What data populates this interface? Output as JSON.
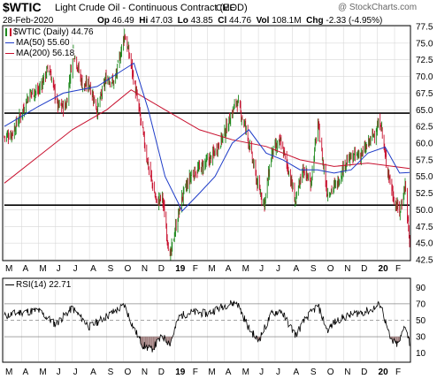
{
  "header": {
    "symbol": "$WTIC",
    "name": "Light Crude Oil - Continuous Contract (EOD)",
    "exchange": "CME",
    "date": "28-Feb-2020",
    "open_label": "Op",
    "open": "46.49",
    "high_label": "Hi",
    "high": "47.03",
    "low_label": "Lo",
    "low": "43.85",
    "close_label": "Cl",
    "close": "44.76",
    "volume_label": "Vol",
    "volume": "108.1M",
    "change_label": "Chg",
    "change": "-2.33 (-4.95%)",
    "watermark": "@ StockCharts.com"
  },
  "legend": {
    "price": "$WTIC (Daily) 44.76",
    "ma50": "MA(50) 55.60",
    "ma200": "MA(200) 56.18",
    "rsi": "RSI(14) 22.71"
  },
  "colors": {
    "up": "#1f8a1f",
    "down": "#c8102e",
    "ma50": "#1e3cc8",
    "ma200": "#c8102e",
    "rsi_line": "#000000",
    "rsi_fill": "#a08080",
    "grid": "#d8d8d8",
    "hline": "#000000"
  },
  "chart_data": [
    {
      "type": "candlestick",
      "x_range": [
        "2018-03-01",
        "2020-02-28"
      ],
      "ylim": [
        42.5,
        77.5
      ],
      "y_ticks": [
        42.5,
        45.0,
        47.5,
        50.0,
        52.5,
        55.0,
        57.5,
        60.0,
        62.5,
        65.0,
        67.5,
        70.0,
        72.5,
        75.0,
        77.5
      ],
      "x_tick_labels": [
        "M",
        "A",
        "M",
        "J",
        "J",
        "A",
        "S",
        "O",
        "N",
        "D",
        "19",
        "F",
        "M",
        "A",
        "M",
        "J",
        "J",
        "A",
        "S",
        "O",
        "N",
        "D",
        "20",
        "F"
      ],
      "grid": true,
      "horizontal_lines": [
        64.5,
        50.7
      ],
      "close_path": [
        [
          "2018-03-01",
          61.0
        ],
        [
          "2018-03-15",
          61.5
        ],
        [
          "2018-04-01",
          64.5
        ],
        [
          "2018-04-15",
          67.5
        ],
        [
          "2018-05-01",
          67.8
        ],
        [
          "2018-05-20",
          71.5
        ],
        [
          "2018-06-05",
          65.5
        ],
        [
          "2018-06-20",
          65.6
        ],
        [
          "2018-07-03",
          74.0
        ],
        [
          "2018-07-20",
          68.5
        ],
        [
          "2018-08-01",
          68.8
        ],
        [
          "2018-08-15",
          65.0
        ],
        [
          "2018-09-01",
          70.0
        ],
        [
          "2018-09-15",
          69.0
        ],
        [
          "2018-10-03",
          76.4
        ],
        [
          "2018-10-15",
          71.8
        ],
        [
          "2018-11-01",
          63.5
        ],
        [
          "2018-11-15",
          56.5
        ],
        [
          "2018-11-30",
          51.0
        ],
        [
          "2018-12-10",
          52.0
        ],
        [
          "2018-12-24",
          42.6
        ],
        [
          "2019-01-01",
          46.5
        ],
        [
          "2019-01-15",
          52.0
        ],
        [
          "2019-02-01",
          55.3
        ],
        [
          "2019-02-20",
          56.5
        ],
        [
          "2019-03-10",
          58.0
        ],
        [
          "2019-04-01",
          61.5
        ],
        [
          "2019-04-23",
          66.4
        ],
        [
          "2019-05-10",
          62.0
        ],
        [
          "2019-05-31",
          53.5
        ],
        [
          "2019-06-12",
          51.0
        ],
        [
          "2019-06-25",
          58.5
        ],
        [
          "2019-07-11",
          60.2
        ],
        [
          "2019-07-25",
          56.0
        ],
        [
          "2019-08-07",
          51.1
        ],
        [
          "2019-08-20",
          56.3
        ],
        [
          "2019-09-03",
          53.9
        ],
        [
          "2019-09-16",
          62.9
        ],
        [
          "2019-09-30",
          54.1
        ],
        [
          "2019-10-03",
          52.5
        ],
        [
          "2019-10-20",
          53.8
        ],
        [
          "2019-11-05",
          57.2
        ],
        [
          "2019-11-20",
          58.0
        ],
        [
          "2019-12-05",
          58.4
        ],
        [
          "2019-12-20",
          60.5
        ],
        [
          "2020-01-07",
          63.3
        ],
        [
          "2020-01-15",
          58.0
        ],
        [
          "2020-01-31",
          51.5
        ],
        [
          "2020-02-10",
          49.6
        ],
        [
          "2020-02-20",
          53.8
        ],
        [
          "2020-02-28",
          44.8
        ]
      ],
      "ma50_path": [
        [
          "2018-03-01",
          62.5
        ],
        [
          "2018-05-01",
          65.5
        ],
        [
          "2018-06-15",
          67.5
        ],
        [
          "2018-08-15",
          68.5
        ],
        [
          "2018-10-01",
          71.0
        ],
        [
          "2018-10-20",
          72.0
        ],
        [
          "2018-11-15",
          65.0
        ],
        [
          "2018-12-15",
          55.0
        ],
        [
          "2019-01-15",
          49.8
        ],
        [
          "2019-02-15",
          52.5
        ],
        [
          "2019-03-15",
          55.0
        ],
        [
          "2019-04-15",
          60.0
        ],
        [
          "2019-05-15",
          62.0
        ],
        [
          "2019-06-15",
          58.5
        ],
        [
          "2019-07-15",
          57.5
        ],
        [
          "2019-08-15",
          56.0
        ],
        [
          "2019-09-15",
          56.0
        ],
        [
          "2019-10-15",
          55.5
        ],
        [
          "2019-11-15",
          56.0
        ],
        [
          "2019-12-15",
          58.5
        ],
        [
          "2020-01-15",
          59.4
        ],
        [
          "2020-02-10",
          55.5
        ],
        [
          "2020-02-28",
          55.6
        ]
      ],
      "ma200_path": [
        [
          "2018-03-01",
          54.0
        ],
        [
          "2018-05-01",
          58.0
        ],
        [
          "2018-07-01",
          62.0
        ],
        [
          "2018-09-01",
          65.0
        ],
        [
          "2018-10-15",
          68.0
        ],
        [
          "2018-12-15",
          65.0
        ],
        [
          "2019-02-15",
          62.0
        ],
        [
          "2019-04-15",
          60.5
        ],
        [
          "2019-06-15",
          59.5
        ],
        [
          "2019-08-15",
          57.5
        ],
        [
          "2019-10-15",
          56.5
        ],
        [
          "2019-12-15",
          57.0
        ],
        [
          "2020-02-28",
          56.2
        ]
      ]
    },
    {
      "type": "line",
      "ylim": [
        0,
        100
      ],
      "y_ticks": [
        10,
        30,
        50,
        70,
        90
      ],
      "reference_lines": [
        70,
        50,
        30
      ],
      "x_tick_labels": [
        "M",
        "A",
        "M",
        "J",
        "J",
        "A",
        "S",
        "O",
        "N",
        "D",
        "19",
        "F",
        "M",
        "A",
        "M",
        "J",
        "J",
        "A",
        "S",
        "O",
        "N",
        "D",
        "20",
        "F"
      ],
      "rsi_path": [
        [
          "2018-03-01",
          55
        ],
        [
          "2018-04-01",
          60
        ],
        [
          "2018-05-01",
          62
        ],
        [
          "2018-06-01",
          45
        ],
        [
          "2018-07-01",
          65
        ],
        [
          "2018-08-01",
          42
        ],
        [
          "2018-09-01",
          55
        ],
        [
          "2018-10-03",
          68
        ],
        [
          "2018-10-20",
          40
        ],
        [
          "2018-11-05",
          20
        ],
        [
          "2018-11-20",
          14
        ],
        [
          "2018-12-10",
          30
        ],
        [
          "2018-12-24",
          22
        ],
        [
          "2019-01-10",
          55
        ],
        [
          "2019-02-01",
          60
        ],
        [
          "2019-03-01",
          58
        ],
        [
          "2019-04-01",
          68
        ],
        [
          "2019-04-23",
          72
        ],
        [
          "2019-05-15",
          40
        ],
        [
          "2019-06-01",
          25
        ],
        [
          "2019-06-25",
          58
        ],
        [
          "2019-07-11",
          62
        ],
        [
          "2019-08-07",
          32
        ],
        [
          "2019-08-25",
          52
        ],
        [
          "2019-09-16",
          68
        ],
        [
          "2019-10-03",
          38
        ],
        [
          "2019-10-20",
          50
        ],
        [
          "2019-11-20",
          58
        ],
        [
          "2019-12-20",
          62
        ],
        [
          "2020-01-07",
          70
        ],
        [
          "2020-01-25",
          25
        ],
        [
          "2020-02-08",
          20
        ],
        [
          "2020-02-20",
          45
        ],
        [
          "2020-02-28",
          22.7
        ]
      ]
    }
  ]
}
